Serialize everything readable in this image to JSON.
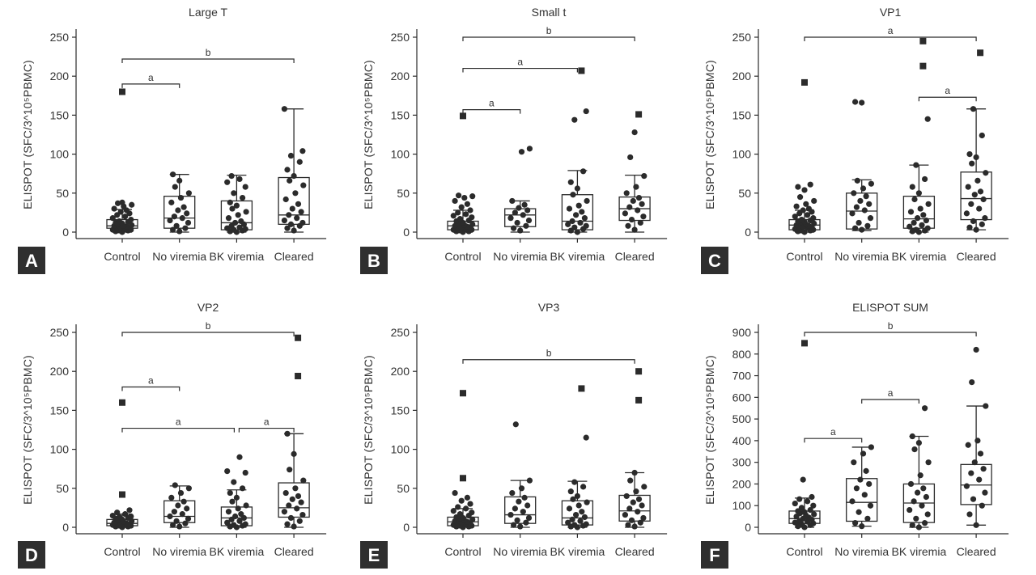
{
  "figure": {
    "ylabel": "ELISPOT (SFC/3^10⁵PBMC)",
    "categories": [
      "Control",
      "No viremia",
      "BK viremia",
      "Cleared"
    ]
  },
  "chart_data": [
    {
      "panel": "A",
      "type": "box",
      "title": "Large T",
      "categories": [
        "Control",
        "No viremia",
        "BK viremia",
        "Cleared"
      ],
      "ylabel": "ELISPOT (SFC/3^10⁵PBMC)",
      "ylim": [
        0,
        250
      ],
      "yticks": [
        0,
        50,
        100,
        150,
        200,
        250
      ],
      "boxes": [
        {
          "whisker_low": 0,
          "q1": 5,
          "median": 8,
          "q3": 16,
          "whisker_high": 29
        },
        {
          "whisker_low": 0,
          "q1": 5,
          "median": 18,
          "q3": 46,
          "whisker_high": 74
        },
        {
          "whisker_low": 0,
          "q1": 3,
          "median": 12,
          "q3": 40,
          "whisker_high": 73
        },
        {
          "whisker_low": 0,
          "q1": 10,
          "median": 22,
          "q3": 70,
          "whisker_high": 158
        }
      ],
      "points": [
        [
          0,
          1,
          2,
          2,
          3,
          3,
          4,
          5,
          5,
          6,
          7,
          8,
          8,
          9,
          10,
          11,
          12,
          13,
          14,
          16,
          18,
          20,
          22,
          24,
          26,
          28,
          30,
          33,
          35,
          37,
          38
        ],
        [
          1,
          3,
          5,
          8,
          12,
          15,
          18,
          20,
          24,
          28,
          32,
          38,
          44,
          50,
          58,
          66,
          74
        ],
        [
          0,
          1,
          2,
          3,
          4,
          5,
          6,
          8,
          10,
          12,
          14,
          18,
          22,
          26,
          30,
          34,
          38,
          44,
          50,
          58,
          64,
          68,
          72
        ],
        [
          2,
          5,
          8,
          10,
          12,
          15,
          18,
          22,
          26,
          30,
          36,
          42,
          50,
          60,
          66,
          72,
          80,
          90,
          98,
          104,
          158
        ]
      ],
      "outliers": [
        {
          "category": "Control",
          "value": 180
        }
      ],
      "significance": [
        {
          "from": "Control",
          "to": "No viremia",
          "label": "a"
        },
        {
          "from": "Control",
          "to": "Cleared",
          "label": "b"
        }
      ]
    },
    {
      "panel": "B",
      "type": "box",
      "title": "Small t",
      "categories": [
        "Control",
        "No viremia",
        "BK viremia",
        "Cleared"
      ],
      "ylabel": "ELISPOT (SFC/3^10⁵PBMC)",
      "ylim": [
        0,
        250
      ],
      "yticks": [
        0,
        50,
        100,
        150,
        200,
        250
      ],
      "boxes": [
        {
          "whisker_low": 0,
          "q1": 3,
          "median": 8,
          "q3": 14,
          "whisker_high": 28
        },
        {
          "whisker_low": 0,
          "q1": 7,
          "median": 22,
          "q3": 30,
          "whisker_high": 40
        },
        {
          "whisker_low": 0,
          "q1": 3,
          "median": 14,
          "q3": 48,
          "whisker_high": 79
        },
        {
          "whisker_low": 0,
          "q1": 15,
          "median": 30,
          "q3": 45,
          "whisker_high": 73
        }
      ],
      "points": [
        [
          0,
          1,
          1,
          2,
          3,
          3,
          4,
          5,
          6,
          6,
          7,
          8,
          9,
          10,
          11,
          12,
          14,
          15,
          17,
          19,
          21,
          23,
          25,
          28,
          32,
          36,
          40,
          44,
          46,
          47
        ],
        [
          2,
          5,
          8,
          12,
          15,
          18,
          22,
          25,
          28,
          31,
          35,
          40,
          103,
          107
        ],
        [
          0,
          2,
          4,
          6,
          8,
          10,
          12,
          14,
          18,
          22,
          26,
          30,
          34,
          40,
          48,
          56,
          64,
          78,
          144,
          155
        ],
        [
          3,
          8,
          12,
          16,
          20,
          24,
          28,
          32,
          36,
          40,
          44,
          50,
          58,
          72,
          96,
          128
        ]
      ],
      "outliers": [
        {
          "category": "Control",
          "value": 149
        },
        {
          "category": "BK viremia",
          "value": 207
        },
        {
          "category": "Cleared",
          "value": 151
        }
      ],
      "significance": [
        {
          "from": "Control",
          "to": "No viremia",
          "label": "a"
        },
        {
          "from": "Control",
          "to": "BK viremia",
          "label": "a"
        },
        {
          "from": "Control",
          "to": "Cleared",
          "label": "b"
        }
      ]
    },
    {
      "panel": "C",
      "type": "box",
      "title": "VP1",
      "categories": [
        "Control",
        "No viremia",
        "BK viremia",
        "Cleared"
      ],
      "ylabel": "ELISPOT (SFC/3^10⁵PBMC)",
      "ylim": [
        0,
        250
      ],
      "yticks": [
        0,
        50,
        100,
        150,
        200,
        250
      ],
      "boxes": [
        {
          "whisker_low": 0,
          "q1": 3,
          "median": 9,
          "q3": 16,
          "whisker_high": 28
        },
        {
          "whisker_low": 2,
          "q1": 4,
          "median": 27,
          "q3": 50,
          "whisker_high": 67
        },
        {
          "whisker_low": 0,
          "q1": 5,
          "median": 17,
          "q3": 46,
          "whisker_high": 86
        },
        {
          "whisker_low": 3,
          "q1": 16,
          "median": 43,
          "q3": 77,
          "whisker_high": 158
        }
      ],
      "points": [
        [
          0,
          1,
          2,
          2,
          3,
          4,
          5,
          5,
          6,
          7,
          8,
          9,
          10,
          11,
          12,
          13,
          14,
          15,
          16,
          18,
          20,
          22,
          24,
          26,
          28,
          30,
          33,
          36,
          40,
          45,
          54,
          58,
          61
        ],
        [
          3,
          5,
          8,
          12,
          18,
          24,
          28,
          32,
          36,
          40,
          46,
          50,
          56,
          62,
          66,
          166,
          167
        ],
        [
          0,
          1,
          2,
          3,
          5,
          7,
          9,
          12,
          15,
          18,
          22,
          26,
          30,
          36,
          42,
          50,
          58,
          68,
          86,
          145
        ],
        [
          3,
          6,
          10,
          14,
          18,
          24,
          30,
          36,
          42,
          48,
          52,
          58,
          66,
          76,
          88,
          96,
          100,
          124,
          158
        ]
      ],
      "outliers": [
        {
          "category": "Control",
          "value": 192
        },
        {
          "category": "BK viremia",
          "value": 245
        },
        {
          "category": "BK viremia",
          "value": 213
        },
        {
          "category": "Cleared",
          "value": 230
        }
      ],
      "significance": [
        {
          "from": "Control",
          "to": "Cleared",
          "label": "a"
        },
        {
          "from": "BK viremia",
          "to": "Cleared",
          "label": "a"
        }
      ]
    },
    {
      "panel": "D",
      "type": "box",
      "title": "VP2",
      "categories": [
        "Control",
        "No viremia",
        "BK viremia",
        "Cleared"
      ],
      "ylabel": "ELISPOT (SFC/3^10⁵PBMC)",
      "ylim": [
        0,
        250
      ],
      "yticks": [
        0,
        50,
        100,
        150,
        200,
        250
      ],
      "boxes": [
        {
          "whisker_low": 0,
          "q1": 2,
          "median": 5,
          "q3": 10,
          "whisker_high": 17
        },
        {
          "whisker_low": 0,
          "q1": 6,
          "median": 14,
          "q3": 34,
          "whisker_high": 53
        },
        {
          "whisker_low": 0,
          "q1": 2,
          "median": 12,
          "q3": 26,
          "whisker_high": 48
        },
        {
          "whisker_low": 0,
          "q1": 13,
          "median": 25,
          "q3": 57,
          "whisker_high": 120
        }
      ],
      "points": [
        [
          0,
          1,
          1,
          2,
          2,
          3,
          3,
          4,
          4,
          5,
          5,
          6,
          7,
          8,
          9,
          10,
          11,
          12,
          13,
          14,
          15,
          17,
          19,
          22
        ],
        [
          1,
          3,
          5,
          8,
          11,
          14,
          17,
          20,
          24,
          28,
          33,
          38,
          44,
          50,
          54
        ],
        [
          0,
          1,
          2,
          3,
          4,
          6,
          8,
          10,
          12,
          14,
          17,
          20,
          24,
          28,
          33,
          38,
          44,
          50,
          58,
          70,
          72,
          90
        ],
        [
          1,
          4,
          8,
          12,
          16,
          20,
          24,
          28,
          32,
          36,
          40,
          44,
          50,
          60,
          74,
          94,
          120
        ]
      ],
      "outliers": [
        {
          "category": "Control",
          "value": 160
        },
        {
          "category": "Control",
          "value": 42
        },
        {
          "category": "Cleared",
          "value": 243
        },
        {
          "category": "Cleared",
          "value": 194
        }
      ],
      "significance": [
        {
          "from": "Control",
          "to": "No viremia",
          "label": "a"
        },
        {
          "from": "Control",
          "to": "BK viremia",
          "label": "a"
        },
        {
          "from": "BK viremia",
          "to": "Cleared",
          "label": "a"
        },
        {
          "from": "Control",
          "to": "Cleared",
          "label": "b"
        }
      ]
    },
    {
      "panel": "E",
      "type": "box",
      "title": "VP3",
      "categories": [
        "Control",
        "No viremia",
        "BK viremia",
        "Cleared"
      ],
      "ylabel": "ELISPOT (SFC/3^10⁵PBMC)",
      "ylim": [
        0,
        250
      ],
      "yticks": [
        0,
        50,
        100,
        150,
        200,
        250
      ],
      "boxes": [
        {
          "whisker_low": 0,
          "q1": 2,
          "median": 7,
          "q3": 13,
          "whisker_high": 24
        },
        {
          "whisker_low": 0,
          "q1": 5,
          "median": 16,
          "q3": 39,
          "whisker_high": 60
        },
        {
          "whisker_low": 0,
          "q1": 3,
          "median": 12,
          "q3": 34,
          "whisker_high": 59
        },
        {
          "whisker_low": 0,
          "q1": 8,
          "median": 21,
          "q3": 41,
          "whisker_high": 70
        }
      ],
      "points": [
        [
          0,
          1,
          1,
          2,
          2,
          3,
          4,
          5,
          5,
          6,
          7,
          8,
          9,
          10,
          11,
          12,
          13,
          15,
          17,
          19,
          21,
          24,
          26,
          30,
          34,
          38,
          44
        ],
        [
          1,
          3,
          6,
          9,
          12,
          16,
          20,
          24,
          28,
          33,
          38,
          44,
          50,
          60,
          132
        ],
        [
          0,
          1,
          2,
          3,
          4,
          6,
          8,
          10,
          13,
          16,
          20,
          24,
          28,
          32,
          36,
          40,
          46,
          52,
          58,
          115
        ],
        [
          1,
          3,
          6,
          9,
          12,
          16,
          20,
          24,
          28,
          32,
          36,
          40,
          46,
          52,
          60,
          70
        ]
      ],
      "outliers": [
        {
          "category": "Control",
          "value": 172
        },
        {
          "category": "Control",
          "value": 63
        },
        {
          "category": "BK viremia",
          "value": 178
        },
        {
          "category": "Cleared",
          "value": 200
        },
        {
          "category": "Cleared",
          "value": 163
        }
      ],
      "significance": [
        {
          "from": "Control",
          "to": "Cleared",
          "label": "b"
        }
      ]
    },
    {
      "panel": "F",
      "type": "box",
      "title": "ELISPOT SUM",
      "categories": [
        "Control",
        "No viremia",
        "BK viremia",
        "Cleared"
      ],
      "ylabel": "ELISPOT (SFC/3^10⁵PBMC)",
      "ylim": [
        0,
        900
      ],
      "yticks": [
        0,
        100,
        200,
        300,
        400,
        500,
        600,
        700,
        800,
        900
      ],
      "boxes": [
        {
          "whisker_low": 0,
          "q1": 18,
          "median": 40,
          "q3": 75,
          "whisker_high": 135
        },
        {
          "whisker_low": 5,
          "q1": 28,
          "median": 115,
          "q3": 225,
          "whisker_high": 370
        },
        {
          "whisker_low": 0,
          "q1": 22,
          "median": 112,
          "q3": 200,
          "whisker_high": 420
        },
        {
          "whisker_low": 10,
          "q1": 105,
          "median": 195,
          "q3": 290,
          "whisker_high": 560
        }
      ],
      "points": [
        [
          0,
          5,
          10,
          15,
          18,
          22,
          26,
          30,
          35,
          40,
          45,
          50,
          55,
          60,
          65,
          70,
          75,
          80,
          90,
          100,
          110,
          120,
          130,
          140,
          220
        ],
        [
          5,
          20,
          40,
          70,
          100,
          120,
          150,
          180,
          200,
          220,
          260,
          300,
          340,
          370
        ],
        [
          0,
          10,
          20,
          40,
          60,
          80,
          100,
          120,
          140,
          160,
          180,
          200,
          240,
          300,
          360,
          390,
          420,
          550
        ],
        [
          10,
          60,
          100,
          130,
          160,
          190,
          220,
          250,
          270,
          300,
          340,
          380,
          400,
          560,
          670,
          820
        ]
      ],
      "outliers": [
        {
          "category": "Control",
          "value": 850
        }
      ],
      "significance": [
        {
          "from": "Control",
          "to": "No viremia",
          "label": "a"
        },
        {
          "from": "No viremia",
          "to": "BK viremia",
          "label": "a"
        },
        {
          "from": "Control",
          "to": "Cleared",
          "label": "b"
        }
      ]
    }
  ]
}
